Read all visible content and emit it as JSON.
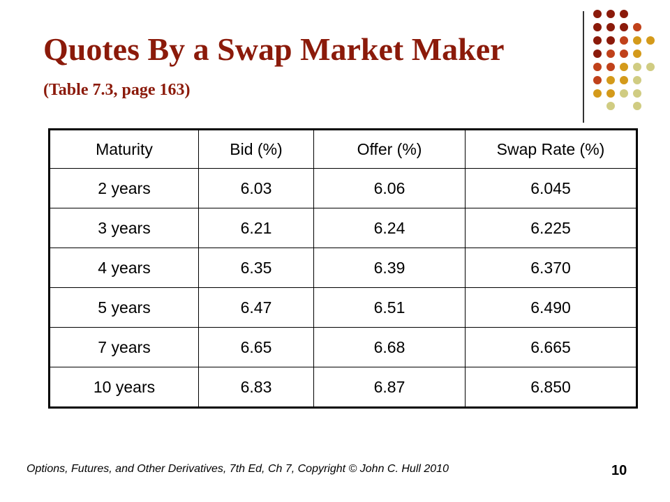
{
  "slide": {
    "title": "Quotes By a Swap Market Maker",
    "subtitle": "(Table 7.3, page 163)",
    "footer": "Options, Futures, and Other Derivatives, 7th Ed, Ch 7, Copyright © John C. Hull 2010",
    "page_number": "10"
  },
  "table": {
    "headers": [
      "Maturity",
      "Bid (%)",
      "Offer (%)",
      "Swap Rate (%)"
    ],
    "rows": [
      [
        "2 years",
        "6.03",
        "6.06",
        "6.045"
      ],
      [
        "3 years",
        "6.21",
        "6.24",
        "6.225"
      ],
      [
        "4 years",
        "6.35",
        "6.39",
        "6.370"
      ],
      [
        "5 years",
        "6.47",
        "6.51",
        "6.490"
      ],
      [
        "7 years",
        "6.65",
        "6.68",
        "6.665"
      ],
      [
        "10 years",
        "6.83",
        "6.87",
        "6.850"
      ]
    ]
  },
  "colors": {
    "title": "#8B1A0A",
    "dot_palette": [
      "#8B1A0A",
      "#C0411A",
      "#D49A1A",
      "#D0CC82"
    ]
  }
}
